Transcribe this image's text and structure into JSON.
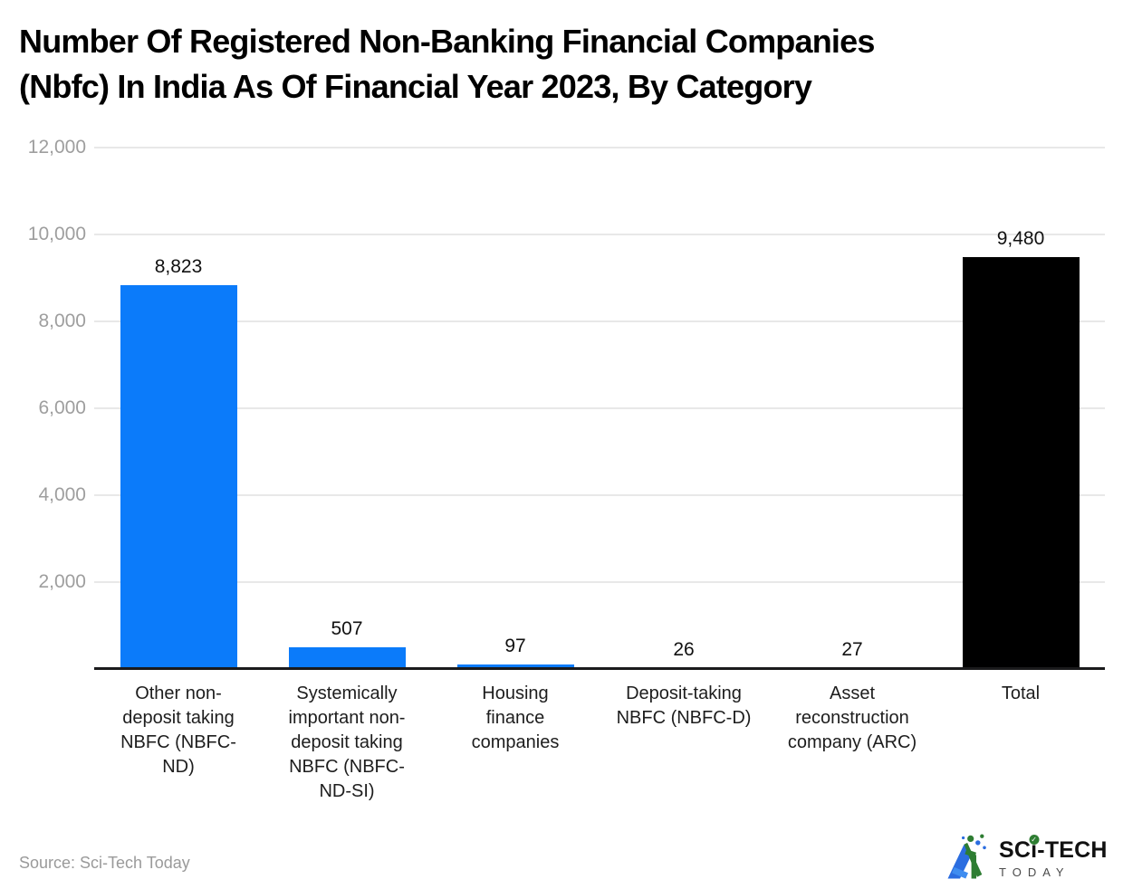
{
  "title": "Number Of Registered Non-Banking Financial Companies (Nbfc) In India As Of Financial Year 2023, By Category",
  "title_lines": [
    "Number Of Registered Non-Banking Financial Companies",
    "(Nbfc) In India As Of Financial Year 2023, By Category"
  ],
  "source": {
    "text": "Source: Sci-Tech Today"
  },
  "logo": {
    "icon": "sci-tech-today-triangle-icon",
    "brand_top_prefix": "SC",
    "brand_top_i": "ı",
    "brand_top_i_dot": "✓",
    "brand_top_suffix": "-TECH",
    "brand_bottom": "TODAY",
    "icon_blue": "#2b6de0",
    "icon_green": "#2e7d32"
  },
  "colors": {
    "bar_blue": "#0b7bfa",
    "bar_black": "#000000",
    "gridline": "#e8e8e8",
    "axis_line": "#1a1a1c",
    "ytick_text": "#9e9e9e",
    "category_text": "#1d1d1d",
    "value_text": "#111111",
    "source_text": "#9a9a9a"
  },
  "chart_data": {
    "type": "bar",
    "title": "Number Of Registered Non-Banking Financial Companies (Nbfc) In India As Of Financial Year 2023, By Category",
    "xlabel": "",
    "ylabel": "",
    "ylim": [
      0,
      12000
    ],
    "yticks": [
      2000,
      4000,
      6000,
      8000,
      10000,
      12000
    ],
    "ytick_labels": [
      "2,000",
      "4,000",
      "6,000",
      "8,000",
      "10,000",
      "12,000"
    ],
    "grid": "horizontal",
    "legend_position": "none",
    "categories": [
      "Other non-deposit taking NBFC (NBFC-ND)",
      "Systemically important non-deposit taking NBFC (NBFC-ND-SI)",
      "Housing finance companies",
      "Deposit-taking NBFC (NBFC-D)",
      "Asset reconstruction company (ARC)",
      "Total"
    ],
    "category_lines": [
      [
        "Other non-",
        "deposit taking",
        "NBFC (NBFC-",
        "ND)"
      ],
      [
        "Systemically",
        "important non-",
        "deposit taking",
        "NBFC (NBFC-",
        "ND-SI)"
      ],
      [
        "Housing",
        "finance",
        "companies"
      ],
      [
        "Deposit-taking",
        "NBFC (NBFC-D)"
      ],
      [
        "Asset",
        "reconstruction",
        "company (ARC)"
      ],
      [
        "Total"
      ]
    ],
    "values": [
      8823,
      507,
      97,
      26,
      27,
      9480
    ],
    "value_labels": [
      "8,823",
      "507",
      "97",
      "26",
      "27",
      "9,480"
    ],
    "bar_colors": [
      "#0b7bfa",
      "#0b7bfa",
      "#0b7bfa",
      "#0b7bfa",
      "#0b7bfa",
      "#000000"
    ]
  }
}
